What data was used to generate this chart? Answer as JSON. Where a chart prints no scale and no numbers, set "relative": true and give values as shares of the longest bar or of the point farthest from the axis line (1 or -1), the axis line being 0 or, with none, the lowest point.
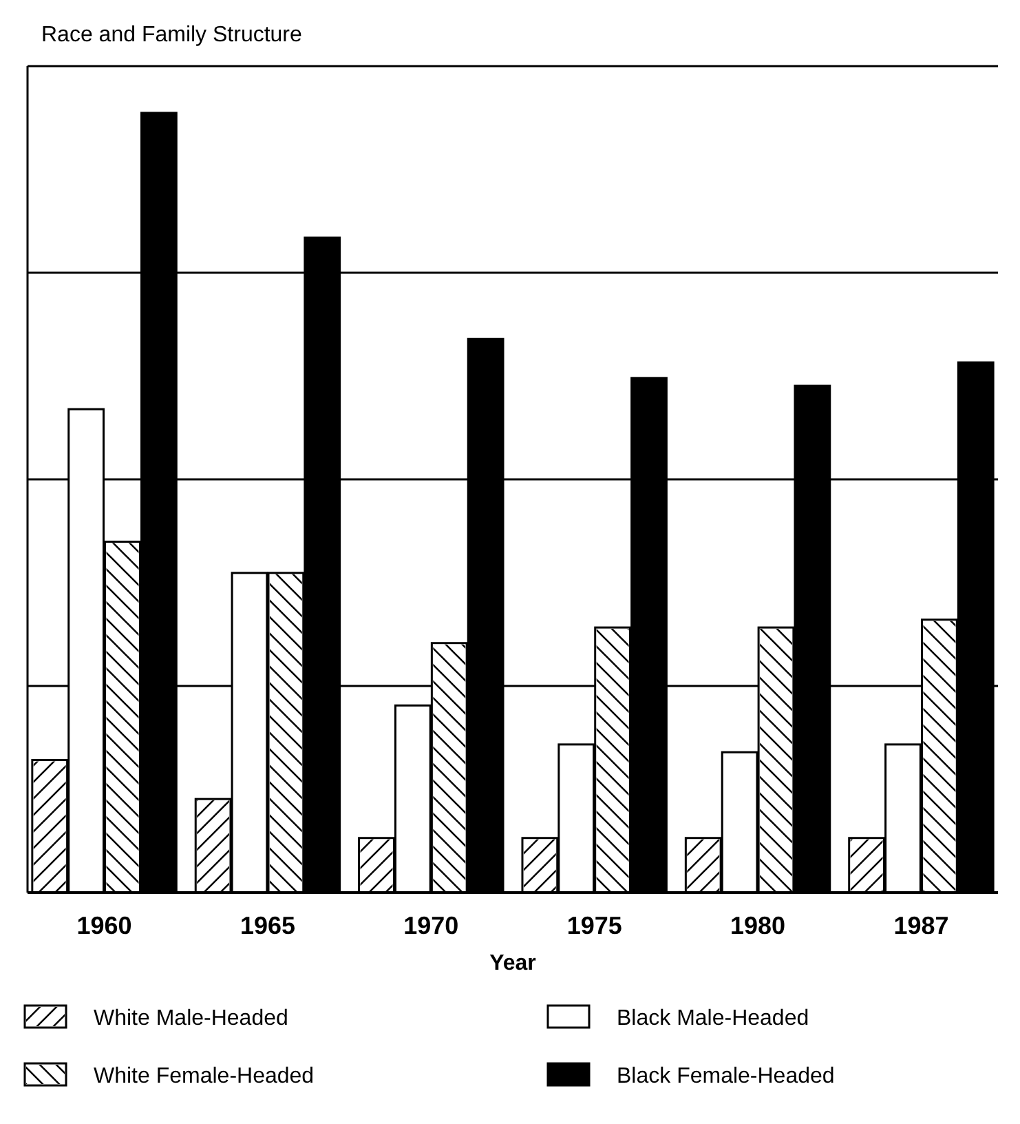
{
  "chart_data": {
    "type": "bar",
    "title": "Race and Family Structure",
    "xlabel": "Year",
    "categories": [
      "1960",
      "1965",
      "1970",
      "1975",
      "1980",
      "1987"
    ],
    "relative": true,
    "grid": "y",
    "legend": "bottom",
    "series": [
      {
        "name": "White Male-Headed",
        "color": "#ffffff",
        "values": [
          0.17,
          0.12,
          0.07,
          0.07,
          0.07,
          0.07
        ]
      },
      {
        "name": "Black Male-Headed",
        "color": "#ffffff",
        "values": [
          0.62,
          0.41,
          0.24,
          0.19,
          0.18,
          0.19
        ]
      },
      {
        "name": "White Female-Headed",
        "color": "#ffffff",
        "values": [
          0.45,
          0.41,
          0.32,
          0.34,
          0.34,
          0.35
        ]
      },
      {
        "name": "Black Female-Headed",
        "color": "#000000",
        "values": [
          1,
          0.84,
          0.71,
          0.66,
          0.65,
          0.68
        ]
      }
    ]
  }
}
